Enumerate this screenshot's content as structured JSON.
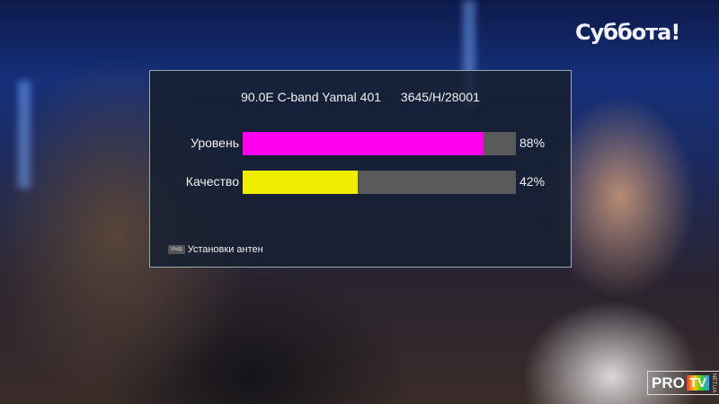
{
  "broadcast": {
    "channel_logo": "Суббота!",
    "watermark": {
      "pro": "PRO",
      "tv": "TV",
      "net": "NET.UA"
    }
  },
  "signal_panel": {
    "satellite": "90.0E C-band Yamal 401",
    "transponder": "3645/H/28001",
    "meters": [
      {
        "label": "Уровень",
        "value": 88,
        "value_text": "88%",
        "color": "#ff00ee"
      },
      {
        "label": "Качество",
        "value": 42,
        "value_text": "42%",
        "color": "#f0ee00"
      }
    ],
    "footer": {
      "key": "Инф",
      "label": "Установки антен"
    }
  }
}
